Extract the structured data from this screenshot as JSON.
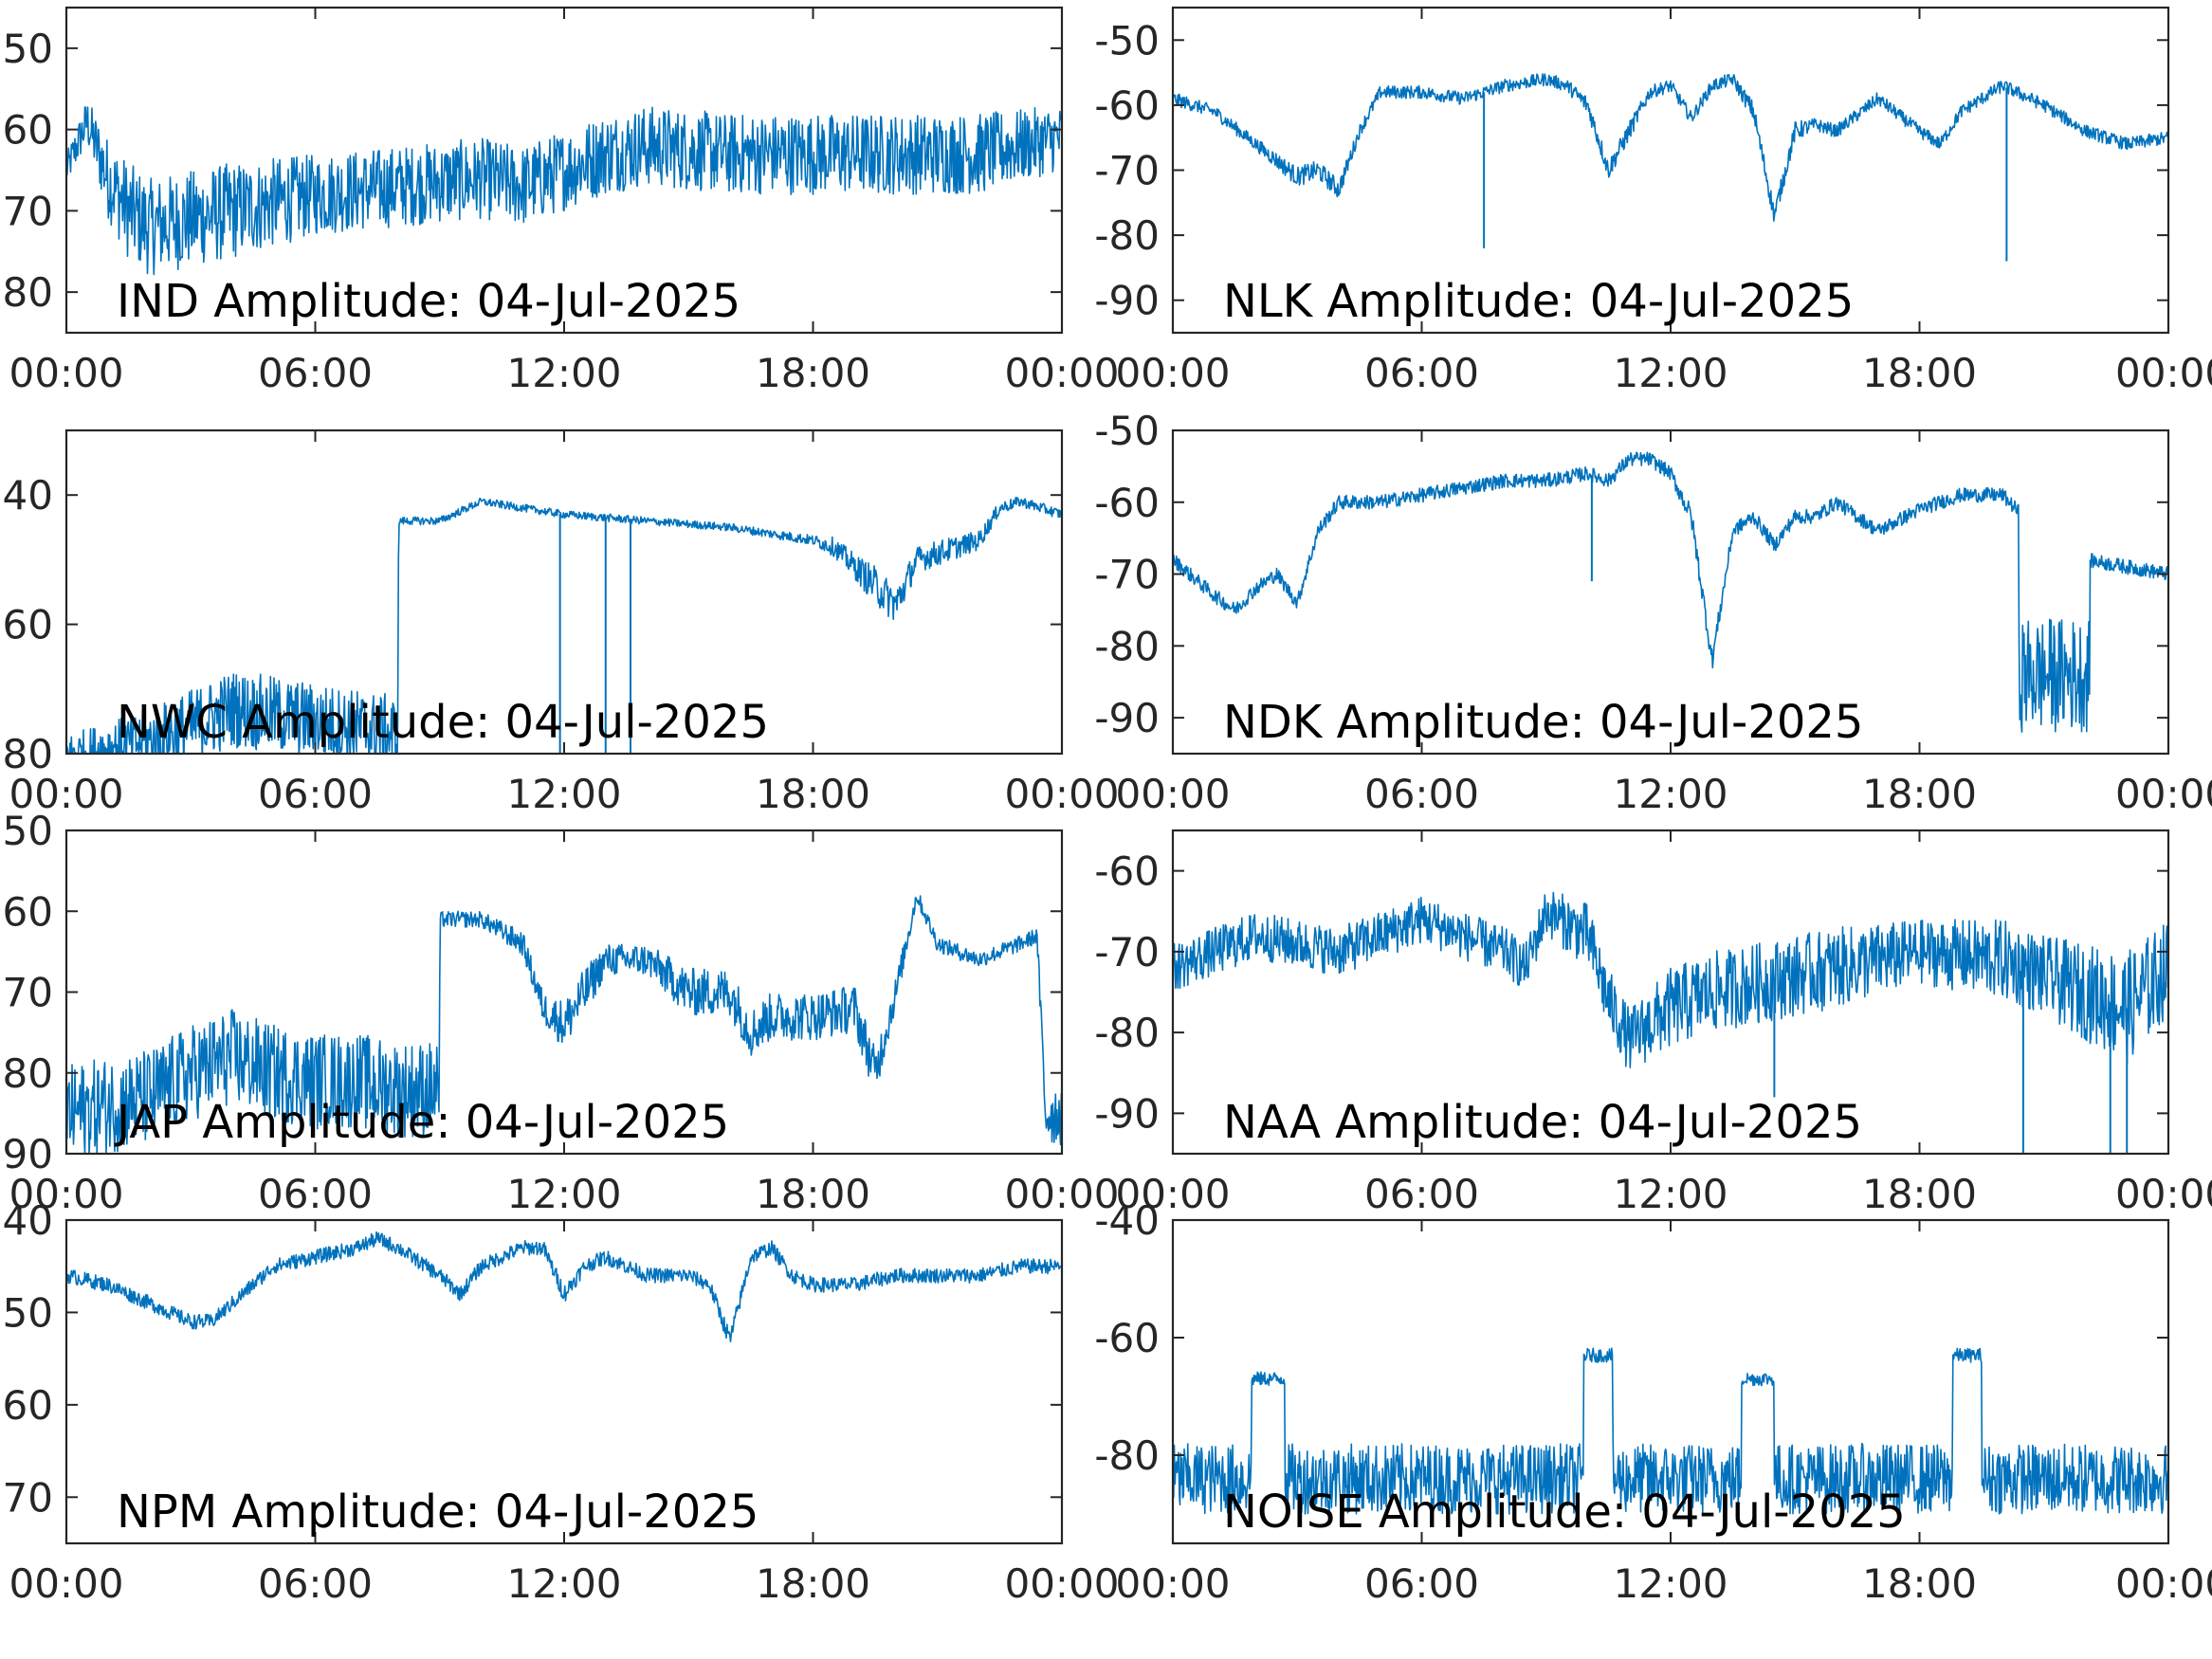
{
  "figure": {
    "accent_color": "#0072BD",
    "x_tick_labels": [
      "00:00",
      "06:00",
      "12:00",
      "18:00",
      "00:00"
    ]
  },
  "chart_data": [
    {
      "type": "line",
      "title": "IND Amplitude: 04-Jul-2025",
      "xlabel": "",
      "ylabel": "",
      "xlim": [
        0,
        24
      ],
      "ylim": [
        -85,
        -45
      ],
      "y_ticks": [
        -50,
        -60,
        -70,
        -80
      ],
      "y_tick_labels": [
        "50",
        "60",
        "70",
        "80"
      ],
      "grid": false,
      "series": [
        {
          "x": [
            0,
            0.5,
            1,
            1.5,
            2,
            3,
            4,
            6,
            8,
            10,
            11,
            12,
            13,
            14,
            16,
            18,
            20,
            22,
            24
          ],
          "values": [
            -65,
            -59,
            -66,
            -70,
            -72,
            -71,
            -70,
            -68,
            -67,
            -66,
            -67,
            -65,
            -63,
            -62,
            -63,
            -63,
            -63,
            -63,
            -61
          ],
          "noise": [
            2,
            3,
            5,
            6,
            6,
            6,
            6,
            5,
            5,
            5,
            5,
            5,
            5,
            5,
            5,
            5,
            5,
            5,
            4
          ]
        }
      ]
    },
    {
      "type": "line",
      "title": "NLK Amplitude: 04-Jul-2025",
      "xlabel": "",
      "ylabel": "",
      "xlim": [
        0,
        24
      ],
      "ylim": [
        -95,
        -45
      ],
      "y_ticks": [
        -50,
        -60,
        -70,
        -80,
        -90
      ],
      "y_tick_labels": [
        "-50",
        "-60",
        "-70",
        "-80",
        "-90"
      ],
      "grid": false,
      "series": [
        {
          "x": [
            0,
            1,
            2,
            3,
            3.5,
            4,
            4.5,
            5,
            6,
            7,
            8,
            9,
            9.5,
            10,
            10.5,
            11,
            11.5,
            12,
            12.5,
            13,
            13.5,
            14,
            14.5,
            15,
            15.5,
            16,
            17,
            18,
            18.5,
            19,
            20,
            21,
            22,
            23,
            24
          ],
          "values": [
            -59,
            -61,
            -66,
            -71,
            -70,
            -73,
            -64,
            -58,
            -58,
            -59,
            -57,
            -56,
            -57,
            -60,
            -70,
            -64,
            -58,
            -57,
            -62,
            -57,
            -56,
            -61,
            -77,
            -64,
            -63,
            -64,
            -59,
            -64,
            -66,
            -61,
            -57,
            -60,
            -64,
            -66,
            -65
          ],
          "noise": [
            1,
            1,
            1,
            1.5,
            1.5,
            1.5,
            1,
            1,
            1,
            1,
            1,
            1,
            1,
            1.5,
            1.5,
            1.5,
            1,
            1,
            1,
            1,
            1,
            1.5,
            1.5,
            1.5,
            1,
            1,
            1,
            1,
            1,
            1,
            1,
            1,
            1,
            1,
            1
          ],
          "spikes": [
            {
              "x": 7.5,
              "y": -82
            },
            {
              "x": 20.1,
              "y": -84
            }
          ]
        }
      ]
    },
    {
      "type": "line",
      "title": "NWC Amplitude: 04-Jul-2025",
      "xlabel": "",
      "ylabel": "",
      "xlim": [
        0,
        24
      ],
      "ylim": [
        -80,
        -30
      ],
      "y_ticks": [
        -40,
        -60,
        -80
      ],
      "y_tick_labels": [
        "40",
        "60",
        "80"
      ],
      "grid": false,
      "series": [
        {
          "x": [
            0,
            1,
            2,
            3,
            4,
            5,
            6,
            7,
            7.99,
            8.01,
            9,
            10,
            11,
            12,
            14,
            16,
            18,
            18.5,
            19,
            19.5,
            20,
            20.5,
            21,
            22,
            22.5,
            23,
            24
          ],
          "values": [
            -80,
            -79,
            -78,
            -76,
            -73,
            -74,
            -75,
            -76,
            -77,
            -44,
            -44,
            -41,
            -42,
            -43,
            -44,
            -45,
            -47,
            -48,
            -51,
            -54,
            -57,
            -50,
            -49,
            -47,
            -42,
            -41,
            -43
          ],
          "noise": [
            3,
            4,
            5,
            6,
            6,
            6,
            6,
            6,
            6,
            0.6,
            0.6,
            0.6,
            0.6,
            0.6,
            0.6,
            0.6,
            0.8,
            1.5,
            2,
            3,
            3,
            2,
            2,
            1.5,
            1,
            0.8,
            0.8
          ],
          "spikes": [
            {
              "x": 11.9,
              "y": -80
            },
            {
              "x": 13.0,
              "y": -80
            },
            {
              "x": 13.6,
              "y": -80
            }
          ]
        }
      ]
    },
    {
      "type": "line",
      "title": "NDK Amplitude: 04-Jul-2025",
      "xlabel": "",
      "ylabel": "",
      "xlim": [
        0,
        24
      ],
      "ylim": [
        -95,
        -50
      ],
      "y_ticks": [
        -50,
        -60,
        -70,
        -80,
        -90
      ],
      "y_tick_labels": [
        "-50",
        "-60",
        "-70",
        "-80",
        "-90"
      ],
      "grid": false,
      "series": [
        {
          "x": [
            0,
            1,
            1.5,
            2,
            2.5,
            3,
            3.5,
            4,
            5,
            6,
            7,
            8,
            9,
            10,
            10.5,
            11,
            11.5,
            12,
            12.5,
            13,
            13.5,
            14,
            14.5,
            15,
            15.5,
            16,
            17,
            18,
            19,
            20,
            20.5,
            21,
            22,
            23,
            24
          ],
          "values": [
            -68,
            -73,
            -75,
            -72,
            -70,
            -74,
            -64,
            -60,
            -60,
            -59,
            -58,
            -57,
            -57,
            -56,
            -57,
            -54,
            -54,
            -56,
            -62,
            -82,
            -64,
            -62,
            -66,
            -62,
            -62,
            -60,
            -64,
            -61,
            -59,
            -59,
            -62,
            -69,
            -68,
            -69,
            -70
          ],
          "noise": [
            1,
            1,
            1,
            1,
            1,
            1,
            1,
            1,
            1,
            1,
            1,
            1,
            1,
            1,
            1,
            1,
            1,
            1,
            1.5,
            1.5,
            1,
            1,
            1,
            1,
            1,
            1,
            1,
            1,
            1,
            1,
            1,
            1,
            1,
            1,
            1
          ],
          "noisy_band": {
            "x0": 20.4,
            "x1": 22.1,
            "center": -84,
            "half_width": 8
          },
          "spikes": [
            {
              "x": 10.1,
              "y": -71
            }
          ]
        }
      ]
    },
    {
      "type": "line",
      "title": "JAP Amplitude: 04-Jul-2025",
      "xlabel": "",
      "ylabel": "",
      "xlim": [
        0,
        24
      ],
      "ylim": [
        -90,
        -50
      ],
      "y_ticks": [
        -50,
        -60,
        -70,
        -80,
        -90
      ],
      "y_tick_labels": [
        "50",
        "60",
        "70",
        "80",
        "90"
      ],
      "grid": false,
      "series": [
        {
          "x": [
            0,
            1,
            2,
            3,
            4,
            5,
            6,
            7,
            8,
            8.99,
            9.01,
            10,
            11,
            11.5,
            12,
            12.5,
            13,
            14,
            15,
            16,
            16.5,
            17,
            18,
            19,
            19.5,
            20,
            20.5,
            21,
            22,
            23,
            23.4,
            23.6,
            24
          ],
          "values": [
            -85,
            -84,
            -83,
            -80,
            -78,
            -80,
            -81,
            -81,
            -82,
            -82,
            -61,
            -61,
            -64,
            -72,
            -74,
            -70,
            -66,
            -66,
            -70,
            -70,
            -75,
            -73,
            -73,
            -72,
            -80,
            -70,
            -58,
            -64,
            -66,
            -64,
            -63,
            -85,
            -85
          ],
          "noise": [
            6,
            6,
            6,
            6,
            6,
            6,
            6,
            6,
            6,
            6,
            1,
            1,
            1.5,
            2,
            3,
            3,
            2,
            2,
            3,
            3,
            3,
            3,
            3,
            3,
            3,
            2,
            1,
            1,
            1,
            1,
            1,
            4,
            4
          ]
        }
      ]
    },
    {
      "type": "line",
      "title": "NAA Amplitude: 04-Jul-2025",
      "xlabel": "",
      "ylabel": "",
      "xlim": [
        0,
        24
      ],
      "ylim": [
        -95,
        -55
      ],
      "y_ticks": [
        -60,
        -70,
        -80,
        -90
      ],
      "y_tick_labels": [
        "-60",
        "-70",
        "-80",
        "-90"
      ],
      "grid": false,
      "series": [
        {
          "x": [
            0,
            1,
            2,
            3,
            4,
            5,
            6,
            7,
            8,
            8.5,
            9,
            10,
            10.5,
            11,
            12,
            13,
            14,
            16,
            18,
            20,
            21,
            22,
            23,
            24
          ],
          "values": [
            -72,
            -70,
            -68,
            -69,
            -70,
            -68,
            -66,
            -68,
            -70,
            -72,
            -65,
            -68,
            -76,
            -81,
            -77,
            -75,
            -74,
            -72,
            -70,
            -71,
            -73,
            -75,
            -77,
            -72
          ],
          "noise": [
            3,
            3,
            3,
            3,
            3,
            3,
            3,
            3,
            3,
            3,
            3,
            4,
            4,
            4,
            5,
            5,
            5,
            5,
            4,
            5,
            5,
            6,
            7,
            6
          ],
          "spikes": [
            {
              "x": 14.5,
              "y": -88
            },
            {
              "x": 20.5,
              "y": -95
            },
            {
              "x": 22.6,
              "y": -95
            },
            {
              "x": 23.0,
              "y": -95
            }
          ]
        }
      ]
    },
    {
      "type": "line",
      "title": "NPM Amplitude: 04-Jul-2025",
      "xlabel": "",
      "ylabel": "",
      "xlim": [
        0,
        24
      ],
      "ylim": [
        -75,
        -40
      ],
      "y_ticks": [
        -40,
        -50,
        -60,
        -70
      ],
      "y_tick_labels": [
        "40",
        "50",
        "60",
        "70"
      ],
      "grid": false,
      "series": [
        {
          "x": [
            0,
            1,
            2,
            3,
            3.5,
            4,
            5,
            6,
            7,
            7.5,
            8,
            9,
            9.5,
            10,
            11,
            11.5,
            12,
            12.5,
            13,
            14,
            15,
            15.5,
            16,
            16.5,
            17,
            17.5,
            18,
            19,
            20,
            21,
            22,
            23,
            24
          ],
          "values": [
            -46,
            -47,
            -49,
            -51,
            -51,
            -49,
            -45,
            -44,
            -43,
            -42,
            -43,
            -46,
            -48,
            -45,
            -43,
            -43,
            -48,
            -45,
            -44,
            -46,
            -46,
            -47,
            -53,
            -44,
            -43,
            -46,
            -47,
            -47,
            -46,
            -46,
            -46,
            -45,
            -45
          ],
          "noise": [
            0.8,
            0.8,
            0.8,
            0.8,
            0.8,
            0.8,
            0.8,
            0.8,
            0.8,
            0.8,
            0.8,
            0.8,
            0.8,
            0.8,
            0.8,
            0.8,
            1,
            0.8,
            0.8,
            0.8,
            0.8,
            0.8,
            1,
            0.8,
            0.8,
            0.8,
            0.8,
            0.8,
            0.8,
            0.8,
            0.8,
            0.8,
            0.8
          ]
        }
      ]
    },
    {
      "type": "line",
      "title": "NOISE Amplitude: 04-Jul-2025",
      "xlabel": "",
      "ylabel": "",
      "xlim": [
        0,
        24
      ],
      "ylim": [
        -95,
        -40
      ],
      "y_ticks": [
        -40,
        -60,
        -80
      ],
      "y_tick_labels": [
        "-40",
        "-60",
        "-80"
      ],
      "grid": false,
      "series": [
        {
          "x": [
            0,
            24
          ],
          "values": [
            -84,
            -84
          ],
          "noise": [
            6,
            6
          ],
          "plateaus": [
            {
              "x0": 1.9,
              "x1": 2.7,
              "y": -67
            },
            {
              "x0": 9.9,
              "x1": 10.6,
              "y": -63
            },
            {
              "x0": 13.7,
              "x1": 14.5,
              "y": -67
            },
            {
              "x0": 18.8,
              "x1": 19.5,
              "y": -63
            }
          ]
        }
      ]
    }
  ]
}
